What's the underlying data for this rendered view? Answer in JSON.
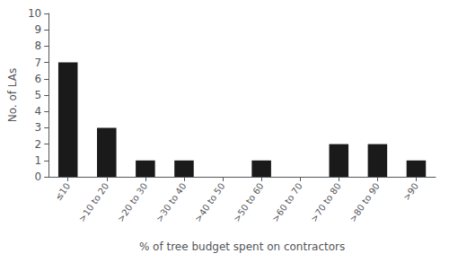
{
  "chart_data": {
    "type": "bar",
    "categories": [
      "≤10",
      ">10 to 20",
      ">20 to 30",
      ">30 to 40",
      ">40 to 50",
      ">50 to 60",
      ">60 to 70",
      ">70 to 80",
      ">80 to 90",
      ">90"
    ],
    "values": [
      7,
      3,
      1,
      1,
      0,
      1,
      0,
      2,
      2,
      1
    ],
    "color": "#1a1a1a",
    "xlabel": "% of tree budget spent on contractors",
    "ylabel": "No. of LAs",
    "ylim": [
      0,
      10
    ],
    "yticks": [
      0,
      1,
      2,
      3,
      4,
      5,
      6,
      7,
      8,
      9,
      10
    ],
    "grid": false
  }
}
